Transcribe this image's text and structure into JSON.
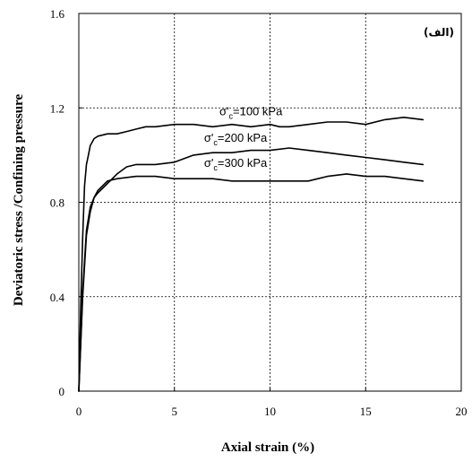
{
  "chart_data": {
    "type": "line",
    "xlabel": "Axial strain (%)",
    "ylabel": "Deviatoric stress /Confining pressure",
    "panel_label": "(الف)",
    "xlim": [
      0,
      20
    ],
    "ylim": [
      0,
      1.6
    ],
    "x_ticks": [
      "0",
      "5",
      "10",
      "15",
      "20"
    ],
    "y_ticks": [
      "0",
      "0.4",
      "0.8",
      "1.2",
      "1.6"
    ],
    "grid": "dashed",
    "legend": "inline annotations",
    "series": [
      {
        "name": "σ'c=100 kPa",
        "label_parts": [
          "σ'",
          "c",
          "=100 kPa"
        ],
        "x": [
          0,
          0.1,
          0.2,
          0.3,
          0.4,
          0.5,
          0.6,
          0.8,
          1.0,
          1.5,
          2.0,
          2.5,
          3.0,
          3.5,
          4.0,
          5.0,
          6.0,
          7.0,
          8.0,
          9.0,
          10.0,
          10.5,
          11.0,
          12.0,
          13.0,
          14.0,
          15.0,
          16.0,
          17.0,
          18.0
        ],
        "y": [
          0,
          0.35,
          0.65,
          0.87,
          0.96,
          1.0,
          1.04,
          1.07,
          1.08,
          1.09,
          1.09,
          1.1,
          1.11,
          1.12,
          1.12,
          1.13,
          1.13,
          1.12,
          1.13,
          1.12,
          1.13,
          1.12,
          1.12,
          1.13,
          1.14,
          1.14,
          1.13,
          1.15,
          1.16,
          1.15
        ]
      },
      {
        "name": "σ'c=200 kPa",
        "label_parts": [
          "σ'",
          "c",
          "=200 kPa"
        ],
        "x": [
          0,
          0.2,
          0.4,
          0.6,
          0.8,
          1.0,
          1.5,
          2.0,
          2.5,
          3.0,
          3.5,
          4.0,
          5.0,
          6.0,
          7.0,
          8.0,
          9.0,
          10.0,
          11.0,
          12.0,
          13.0,
          14.0,
          15.0,
          16.0,
          17.0,
          18.0
        ],
        "y": [
          0,
          0.4,
          0.66,
          0.76,
          0.82,
          0.84,
          0.88,
          0.92,
          0.95,
          0.96,
          0.96,
          0.96,
          0.97,
          1.0,
          1.01,
          1.01,
          1.02,
          1.02,
          1.03,
          1.02,
          1.01,
          1.0,
          0.99,
          0.98,
          0.97,
          0.96
        ]
      },
      {
        "name": "σ'c=300 kPa",
        "label_parts": [
          "σ'",
          "c",
          "=300 kPa"
        ],
        "x": [
          0,
          0.2,
          0.4,
          0.6,
          0.8,
          1.0,
          1.5,
          2.0,
          3.0,
          4.0,
          5.0,
          6.0,
          7.0,
          8.0,
          9.0,
          10.0,
          11.0,
          12.0,
          12.5,
          13.0,
          14.0,
          15.0,
          16.0,
          17.0,
          18.0
        ],
        "y": [
          0,
          0.42,
          0.68,
          0.78,
          0.82,
          0.85,
          0.89,
          0.9,
          0.91,
          0.91,
          0.9,
          0.9,
          0.9,
          0.89,
          0.89,
          0.89,
          0.89,
          0.89,
          0.9,
          0.91,
          0.92,
          0.91,
          0.91,
          0.9,
          0.89
        ]
      }
    ]
  }
}
